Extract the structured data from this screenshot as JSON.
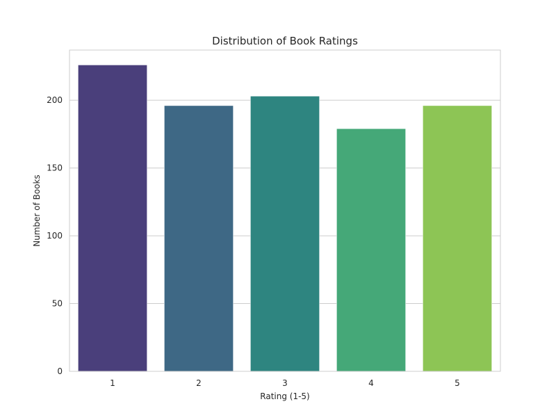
{
  "chart_data": {
    "type": "bar",
    "title": "Distribution of Book Ratings",
    "xlabel": "Rating (1-5)",
    "ylabel": "Number of Books",
    "categories": [
      "1",
      "2",
      "3",
      "4",
      "5"
    ],
    "values": [
      226,
      196,
      203,
      179,
      196
    ],
    "colors": [
      "#4a3f7b",
      "#3e6885",
      "#2e8580",
      "#45a878",
      "#8dc555"
    ],
    "yticks": [
      0,
      50,
      100,
      150,
      200
    ],
    "ytick_labels": [
      "0",
      "50",
      "100",
      "150",
      "200"
    ],
    "ylim": [
      0,
      237
    ],
    "grid": true,
    "legend": false
  }
}
